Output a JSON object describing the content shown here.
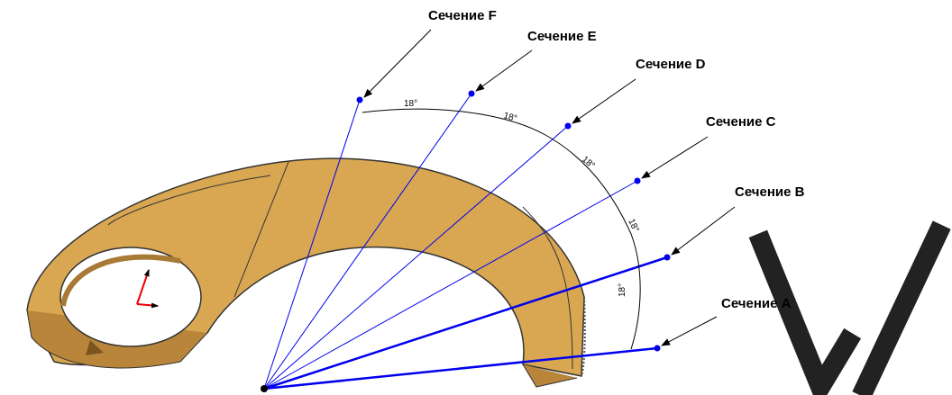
{
  "sections": [
    {
      "label": "Сечение F"
    },
    {
      "label": "Сечение E"
    },
    {
      "label": "Сечение D"
    },
    {
      "label": "Сечение C"
    },
    {
      "label": "Сечение B"
    },
    {
      "label": "Сечение A"
    }
  ],
  "angles": [
    "18°",
    "18°",
    "18°",
    "18°",
    "18°"
  ]
}
